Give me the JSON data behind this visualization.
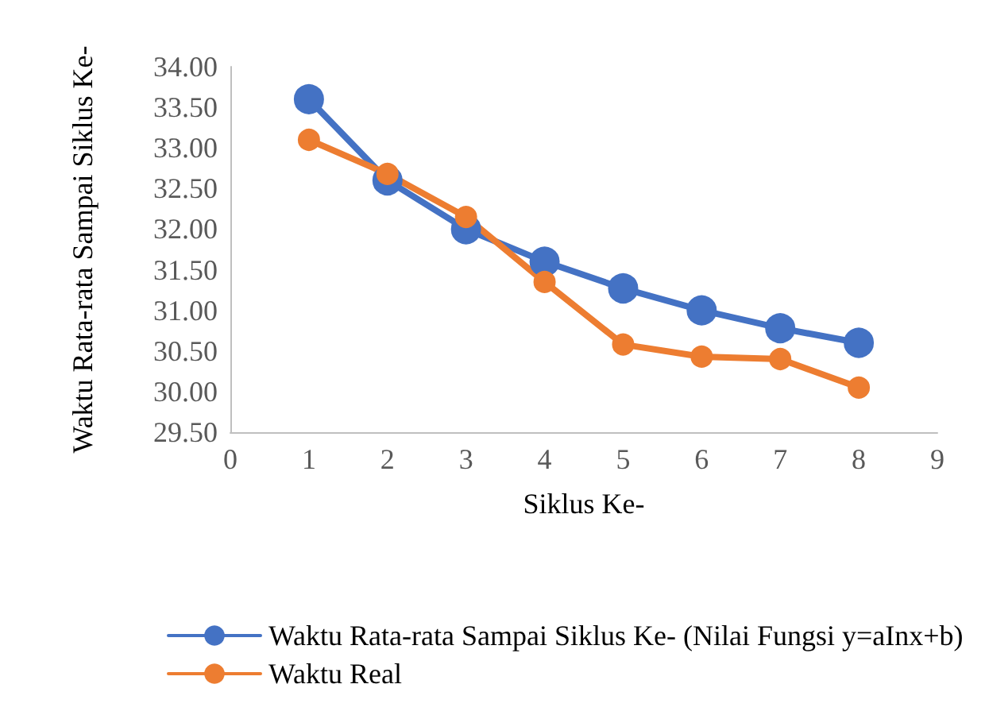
{
  "chart_data": {
    "type": "line",
    "xlabel": "Siklus Ke-",
    "ylabel": "Waktu Rata-rata Sampai Siklus Ke-",
    "x": [
      1,
      2,
      3,
      4,
      5,
      6,
      7,
      8
    ],
    "series": [
      {
        "name": "Waktu Rata-rata Sampai Siklus Ke- (Nilai Fungsi y=aInx+b)",
        "color": "#4472c4",
        "values": [
          33.6,
          32.6,
          32.0,
          31.6,
          31.27,
          31.0,
          30.78,
          30.6
        ]
      },
      {
        "name": "Waktu Real",
        "color": "#ed7d31",
        "values": [
          33.1,
          32.68,
          32.15,
          31.35,
          30.58,
          30.43,
          30.4,
          30.05
        ]
      }
    ],
    "xlim": [
      0,
      9
    ],
    "xticks": [
      0,
      1,
      2,
      3,
      4,
      5,
      6,
      7,
      8,
      9
    ],
    "ylim": [
      29.5,
      34
    ],
    "yticks": [
      {
        "value": 29.5,
        "label": "29.50"
      },
      {
        "value": 30,
        "label": "30.00"
      },
      {
        "value": 30.5,
        "label": "30.50"
      },
      {
        "value": 31,
        "label": "31.00"
      },
      {
        "value": 31.5,
        "label": "31.50"
      },
      {
        "value": 32,
        "label": "32.00"
      },
      {
        "value": 32.5,
        "label": "32.50"
      },
      {
        "value": 33,
        "label": "33.00"
      },
      {
        "value": 33.5,
        "label": "33.50"
      },
      {
        "value": 34,
        "label": "34.00"
      }
    ],
    "grid": false,
    "legend": "bottom",
    "marker": "circle",
    "line_style": "solid"
  }
}
